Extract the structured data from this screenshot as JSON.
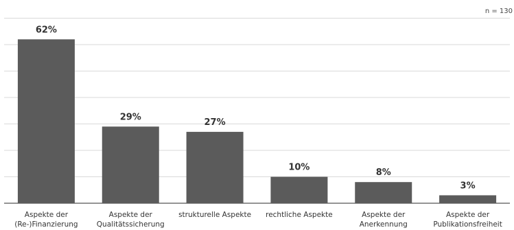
{
  "chart_data": {
    "type": "bar",
    "note": "n = 130",
    "categories": [
      [
        "Aspekte der",
        "(Re-)Finanzierung"
      ],
      [
        "Aspekte der",
        "Qualitätssicherung"
      ],
      [
        "strukturelle Aspekte"
      ],
      [
        "rechtliche Aspekte"
      ],
      [
        "Aspekte der",
        "Anerkennung"
      ],
      [
        "Aspekte der",
        "Publikationsfreiheit"
      ]
    ],
    "values": [
      62,
      29,
      27,
      10,
      8,
      3
    ],
    "value_labels": [
      "62%",
      "29%",
      "27%",
      "10%",
      "8%",
      "3%"
    ],
    "ylim": [
      0,
      80
    ],
    "grid": true,
    "colors": {
      "bar": "#5b5b5b",
      "grid": "#d9d9d9",
      "axis": "#555555"
    }
  }
}
